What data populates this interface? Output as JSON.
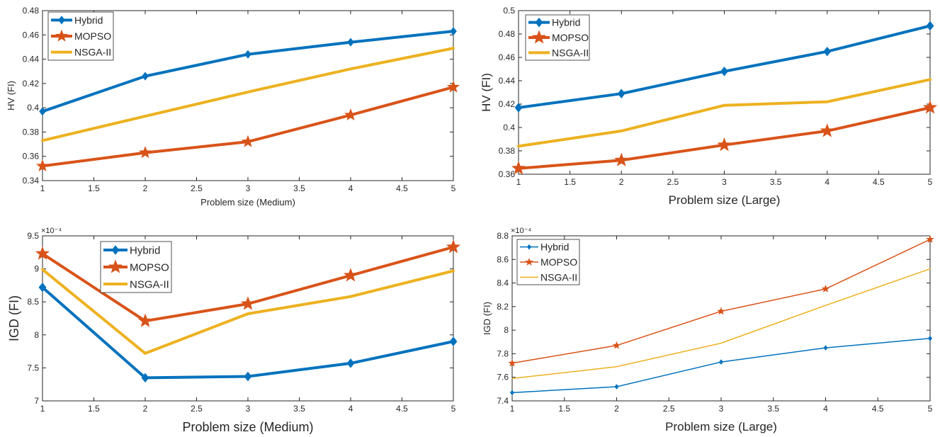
{
  "chart_data": [
    {
      "type": "line",
      "panel": "top-left",
      "x": [
        1,
        2,
        3,
        4,
        5
      ],
      "xlabel": "Problem size (Medium)",
      "ylabel": "HV (FI)",
      "xlim": [
        1,
        5
      ],
      "ylim": [
        0.34,
        0.48
      ],
      "xticks": [
        1,
        1.5,
        2,
        2.5,
        3,
        3.5,
        4,
        4.5,
        5
      ],
      "xtick_labels": [
        "1",
        "1.5",
        "2",
        "2.5",
        "3",
        "3.5",
        "4",
        "4.5",
        "5"
      ],
      "yticks": [
        0.34,
        0.36,
        0.38,
        0.4,
        0.42,
        0.44,
        0.46,
        0.48
      ],
      "ytick_labels": [
        "0.34",
        "0.36",
        "0.38",
        "0.4",
        "0.42",
        "0.44",
        "0.46",
        "0.48"
      ],
      "exponent": "",
      "legend": "top-left",
      "grid": false,
      "series": [
        {
          "name": "Hybrid",
          "values": [
            0.397,
            0.426,
            0.444,
            0.454,
            0.463
          ],
          "color": "#0072BD",
          "marker": "diamond"
        },
        {
          "name": "MOPSO",
          "values": [
            0.352,
            0.363,
            0.372,
            0.394,
            0.417
          ],
          "color": "#D95319",
          "marker": "star"
        },
        {
          "name": "NSGA-II",
          "values": [
            0.373,
            0.393,
            0.413,
            0.432,
            0.449
          ],
          "color": "#EDB120",
          "marker": "none"
        }
      ]
    },
    {
      "type": "line",
      "panel": "top-right",
      "x": [
        1,
        2,
        3,
        4,
        5
      ],
      "xlabel": "Problem size (Large)",
      "ylabel": "HV (FI)",
      "xlim": [
        1,
        5
      ],
      "ylim": [
        0.36,
        0.5
      ],
      "xticks": [
        1,
        1.5,
        2,
        2.5,
        3,
        3.5,
        4,
        4.5,
        5
      ],
      "xtick_labels": [
        "1",
        "1.5",
        "2",
        "2.5",
        "3",
        "3.5",
        "4",
        "4.5",
        "5"
      ],
      "yticks": [
        0.36,
        0.38,
        0.4,
        0.42,
        0.44,
        0.46,
        0.48,
        0.5
      ],
      "ytick_labels": [
        "0.36",
        "0.38",
        "0.4",
        "0.42",
        "0.44",
        "0.46",
        "0.48",
        "0.5"
      ],
      "exponent": "",
      "legend": "top-left",
      "grid": false,
      "series": [
        {
          "name": "Hybrid",
          "values": [
            0.417,
            0.429,
            0.448,
            0.465,
            0.487
          ],
          "color": "#0072BD",
          "marker": "diamond"
        },
        {
          "name": "MOPSO",
          "values": [
            0.365,
            0.372,
            0.385,
            0.397,
            0.417
          ],
          "color": "#D95319",
          "marker": "star"
        },
        {
          "name": "NSGA-II",
          "values": [
            0.384,
            0.397,
            0.419,
            0.422,
            0.441
          ],
          "color": "#EDB120",
          "marker": "none"
        }
      ]
    },
    {
      "type": "line",
      "panel": "bottom-left",
      "x": [
        1,
        2,
        3,
        4,
        5
      ],
      "xlabel": "Problem size (Medium)",
      "ylabel": "IGD (FI)",
      "xlim": [
        1,
        5
      ],
      "ylim": [
        7,
        9.5
      ],
      "xticks": [
        1,
        1.5,
        2,
        2.5,
        3,
        3.5,
        4,
        4.5,
        5
      ],
      "xtick_labels": [
        "1",
        "1.5",
        "2",
        "2.5",
        "3",
        "3.5",
        "4",
        "4.5",
        "5"
      ],
      "yticks": [
        7,
        7.5,
        8,
        8.5,
        9,
        9.5
      ],
      "ytick_labels": [
        "7",
        "7.5",
        "8",
        "8.5",
        "9",
        "9.5"
      ],
      "exponent": "×10⁻⁴",
      "legend": "top-center",
      "grid": false,
      "series": [
        {
          "name": "Hybrid",
          "values": [
            8.72,
            7.35,
            7.37,
            7.57,
            7.9
          ],
          "color": "#0072BD",
          "marker": "diamond"
        },
        {
          "name": "MOPSO",
          "values": [
            9.23,
            8.21,
            8.47,
            8.9,
            9.33
          ],
          "color": "#D95319",
          "marker": "star"
        },
        {
          "name": "NSGA-II",
          "values": [
            8.99,
            7.72,
            8.32,
            8.58,
            8.97
          ],
          "color": "#EDB120",
          "marker": "none"
        }
      ]
    },
    {
      "type": "line",
      "panel": "bottom-right",
      "x": [
        1,
        2,
        3,
        4,
        5
      ],
      "xlabel": "Problem size (Large)",
      "ylabel": "IGD (FI)",
      "xlim": [
        1,
        5
      ],
      "ylim": [
        7.4,
        8.8
      ],
      "xticks": [
        1,
        1.5,
        2,
        2.5,
        3,
        3.5,
        4,
        4.5,
        5
      ],
      "xtick_labels": [
        "1",
        "1.5",
        "2",
        "2.5",
        "3",
        "3.5",
        "4",
        "4.5",
        "5"
      ],
      "yticks": [
        7.4,
        7.6,
        7.8,
        8.0,
        8.2,
        8.4,
        8.6,
        8.8
      ],
      "ytick_labels": [
        "7.4",
        "7.6",
        "7.8",
        "8",
        "8.2",
        "8.4",
        "8.6",
        "8.8"
      ],
      "exponent": "×10⁻⁴",
      "legend": "top-left",
      "grid": false,
      "series": [
        {
          "name": "Hybrid",
          "values": [
            7.47,
            7.52,
            7.73,
            7.85,
            7.93
          ],
          "color": "#0072BD",
          "marker": "diamond"
        },
        {
          "name": "MOPSO",
          "values": [
            7.72,
            7.87,
            8.16,
            8.35,
            8.77
          ],
          "color": "#D95319",
          "marker": "star"
        },
        {
          "name": "NSGA-II",
          "values": [
            7.59,
            7.69,
            7.89,
            8.21,
            8.52
          ],
          "color": "#EDB120",
          "marker": "none"
        }
      ]
    }
  ]
}
